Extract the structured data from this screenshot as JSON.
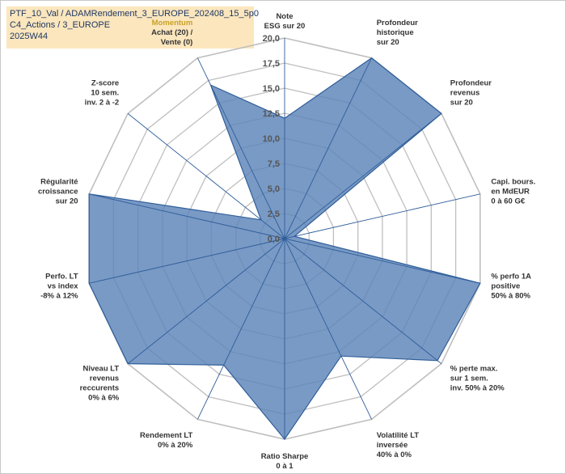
{
  "title": {
    "lines": [
      "PTF_10_Val / ADAMRendement_3_EUROPE_202408_15_5p0",
      "C4_Actions / 3_EUROPE",
      "2025W44"
    ]
  },
  "chart_data": {
    "type": "radar",
    "rmin": 0,
    "rmax": 20,
    "ticks": [
      "0,0",
      "2,5",
      "5,0",
      "7,5",
      "10,0",
      "12,5",
      "15,0",
      "17,5",
      "20,0"
    ],
    "axes": [
      {
        "label": [
          "Note",
          "ESG sur 20"
        ],
        "value": 12
      },
      {
        "label": [
          "Profondeur",
          "historique",
          "sur 20"
        ],
        "value": 20
      },
      {
        "label": [
          "Profondeur",
          "revenus",
          "sur 20"
        ],
        "value": 20
      },
      {
        "label": [
          "Capi. bours.",
          "en MdEUR",
          "0 à 60 G€"
        ],
        "value": 1
      },
      {
        "label": [
          "% perfo 1A",
          "positive",
          "50% à 80%"
        ],
        "value": 20
      },
      {
        "label": [
          "% perte max.",
          "sur 1 sem.",
          "inv. 50% à 20%"
        ],
        "value": 19.5
      },
      {
        "label": [
          "Volatilité LT",
          "inversée",
          "40% à 0%"
        ],
        "value": 13
      },
      {
        "label": [
          "Ratio Sharpe",
          "0 à 1"
        ],
        "value": 20
      },
      {
        "label": [
          "Rendement LT",
          "0% à 20%"
        ],
        "value": 14
      },
      {
        "label": [
          "Niveau LT",
          "revenus",
          "reccurents",
          "0% à 6%"
        ],
        "value": 20
      },
      {
        "label": [
          "Perfo. LT",
          "vs index",
          "-8% à 12%"
        ],
        "value": 20
      },
      {
        "label": [
          "Régularité",
          "croissance",
          "sur 20"
        ],
        "value": 20
      },
      {
        "label": [
          "Z-score",
          "10 sem.",
          "inv. 2 à -2"
        ],
        "value": 3
      },
      {
        "label": [
          "Momentum",
          "Achat (20) /",
          "Vente (0)"
        ],
        "value": 17
      }
    ],
    "colors": {
      "fill": "#5b84b8",
      "stroke": "#2f5e9a",
      "grid": "#bfbfbf",
      "axis": "#2f5e9a"
    }
  }
}
